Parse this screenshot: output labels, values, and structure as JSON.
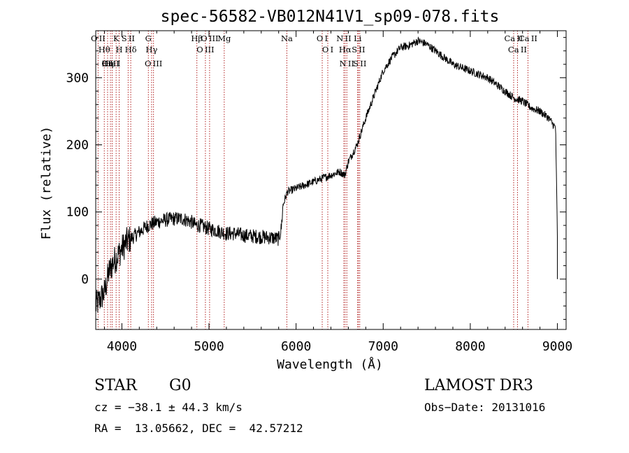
{
  "chart_data": {
    "type": "line",
    "title": "spec-56582-VB012N41V1_sp09-078.fits",
    "xlabel": "Wavelength (Å)",
    "ylabel": "Flux (relative)",
    "xlim": [
      3700,
      9100
    ],
    "ylim": [
      -75,
      370
    ],
    "xticks": [
      4000,
      5000,
      6000,
      7000,
      8000,
      9000
    ],
    "yticks": [
      0,
      100,
      200,
      300
    ],
    "series": [
      {
        "name": "spectrum",
        "x": [
          3700,
          3750,
          3800,
          3850,
          3900,
          3950,
          4000,
          4050,
          4100,
          4150,
          4200,
          4300,
          4400,
          4500,
          4600,
          4700,
          4800,
          4850,
          4900,
          5000,
          5100,
          5200,
          5300,
          5400,
          5500,
          5600,
          5700,
          5800,
          5830,
          5850,
          5900,
          6000,
          6100,
          6200,
          6300,
          6400,
          6500,
          6560,
          6600,
          6700,
          6800,
          6900,
          7000,
          7100,
          7200,
          7300,
          7400,
          7500,
          7600,
          7700,
          7800,
          7900,
          8000,
          8100,
          8200,
          8300,
          8400,
          8500,
          8600,
          8700,
          8800,
          8900,
          8980,
          9000
        ],
        "y": [
          -40,
          -30,
          -20,
          10,
          25,
          35,
          45,
          55,
          60,
          65,
          70,
          80,
          85,
          88,
          90,
          90,
          85,
          80,
          80,
          75,
          72,
          68,
          68,
          65,
          64,
          63,
          62,
          60,
          75,
          110,
          130,
          135,
          140,
          145,
          150,
          155,
          160,
          155,
          175,
          200,
          240,
          275,
          310,
          330,
          345,
          348,
          355,
          350,
          340,
          330,
          320,
          315,
          310,
          305,
          300,
          290,
          280,
          270,
          265,
          255,
          250,
          240,
          225,
          60
        ]
      }
    ],
    "line_ids": [
      {
        "name": "O II",
        "wl": 3727,
        "pos": "top"
      },
      {
        "name": "Hθ",
        "wl": 3798,
        "pos": "top"
      },
      {
        "name": "Hη",
        "wl": 3836,
        "pos": "top"
      },
      {
        "name": "K",
        "wl": 3934,
        "pos": "top"
      },
      {
        "name": "H",
        "wl": 3969,
        "pos": "top"
      },
      {
        "name": "O III",
        "wl": 3869,
        "pos": "top"
      },
      {
        "name": "He I",
        "wl": 3889,
        "pos": "top"
      },
      {
        "name": "S II",
        "wl": 4072,
        "pos": "top"
      },
      {
        "name": "Hδ",
        "wl": 4102,
        "pos": "top"
      },
      {
        "name": "G",
        "wl": 4304,
        "pos": "top"
      },
      {
        "name": "Hγ",
        "wl": 4341,
        "pos": "top"
      },
      {
        "name": "O III",
        "wl": 4363,
        "pos": "top"
      },
      {
        "name": "Hβ",
        "wl": 4861,
        "pos": "top"
      },
      {
        "name": "O III",
        "wl": 4959,
        "pos": "top"
      },
      {
        "name": "O III",
        "wl": 5007,
        "pos": "top"
      },
      {
        "name": "Mg",
        "wl": 5175,
        "pos": "top"
      },
      {
        "name": "Na",
        "wl": 5894,
        "pos": "top"
      },
      {
        "name": "O I",
        "wl": 6300,
        "pos": "top"
      },
      {
        "name": "O I",
        "wl": 6364,
        "pos": "top"
      },
      {
        "name": "N II",
        "wl": 6548,
        "pos": "top"
      },
      {
        "name": "Hα",
        "wl": 6563,
        "pos": "top"
      },
      {
        "name": "N II",
        "wl": 6583,
        "pos": "top"
      },
      {
        "name": "Li",
        "wl": 6707,
        "pos": "top"
      },
      {
        "name": "S II",
        "wl": 6716,
        "pos": "top"
      },
      {
        "name": "S II",
        "wl": 6731,
        "pos": "top"
      },
      {
        "name": "Ca II",
        "wl": 8498,
        "pos": "top"
      },
      {
        "name": "Ca II",
        "wl": 8542,
        "pos": "top"
      },
      {
        "name": "Ca II",
        "wl": 8662,
        "pos": "top"
      }
    ]
  },
  "info": {
    "object_class": "STAR",
    "subclass": "G0",
    "survey": "LAMOST DR3",
    "redshift_line": "cz = −38.1 ± 44.3 km/s",
    "obs_date": "Obs−Date: 20131016",
    "coords": "RA =  13.05662, DEC =  42.57212"
  },
  "colors": {
    "spectrum": "#000000",
    "line_markers": "#b22222"
  }
}
